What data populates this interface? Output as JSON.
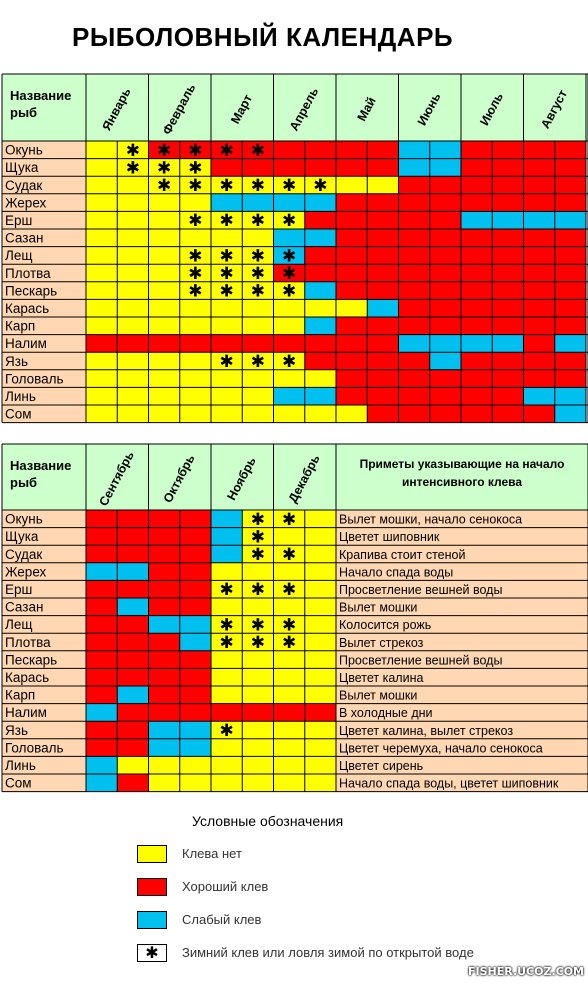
{
  "title": "РЫБОЛОВНЫЙ КАЛЕНДАРЬ",
  "colors": {
    "Y": "#ffff00",
    "R": "#ff0000",
    "B": "#00c0f0",
    "header": "#ccffcc",
    "name": "#ffd7b3"
  },
  "chart_data": [
    {
      "type": "table",
      "header_label": "Название рыб",
      "months": [
        "Январь",
        "Февраль",
        "Март",
        "Апрель",
        "Май",
        "Июнь",
        "Июль",
        "Август"
      ],
      "fish": [
        "Окунь",
        "Щука",
        "Судак",
        "Жерех",
        "Ерш",
        "Сазан",
        "Лещ",
        "Плотва",
        "Пескарь",
        "Карась",
        "Карп",
        "Налим",
        "Язь",
        "Головаль",
        "Линь",
        "Сом"
      ],
      "cells": [
        "YYRRRRRRRRBBRRRR",
        "YYYYRRRRRRBBRRRR",
        "YYYYYYYYYYRRRRRR",
        "YYYYBBBBRRRRRRRR",
        "YYYYYYYRRRRRBBBB",
        "YYYYYYBBRRRRRRRR",
        "YYYYYYBRRRRRRRRR",
        "YYYYYYRRRRRRRRRR",
        "YYYYYYYBRRRRRRRR",
        "YYYYYYYYYBRRRRRR",
        "YYYYYYYBRRRRRRRR",
        "RRRRRRRRRRBBBBRB",
        "YYYYYYYRRRRBRRRR",
        "YYYYYYYYRRRRRRRR",
        "YYYYYYBBRRRRRRBB",
        "YYYYYYYYYRRRRRRB"
      ],
      "stars": [
        [
          1,
          2,
          3,
          4,
          5
        ],
        [
          1,
          2,
          3
        ],
        [
          2,
          3,
          4,
          5,
          6,
          7
        ],
        [],
        [
          3,
          4,
          5,
          6
        ],
        [],
        [
          3,
          4,
          5,
          6
        ],
        [
          3,
          4,
          5,
          6
        ],
        [
          3,
          4,
          5,
          6
        ],
        [],
        [],
        [],
        [
          4,
          5,
          6
        ],
        [],
        [],
        []
      ]
    },
    {
      "type": "table",
      "header_label": "Название рыб",
      "months": [
        "Сентябрь",
        "Октябрь",
        "Ноябрь",
        "Декабрь"
      ],
      "signs_header": "Приметы указывающие на начало интенсивного клева",
      "fish": [
        "Окунь",
        "Щука",
        "Судак",
        "Жерех",
        "Ерш",
        "Сазан",
        "Лещ",
        "Плотва",
        "Пескарь",
        "Карась",
        "Карп",
        "Налим",
        "Язь",
        "Головаль",
        "Линь",
        "Сом"
      ],
      "cells": [
        "RRRRBYYY",
        "RRRRBYYY",
        "RRRRBYYY",
        "BBRRYYYY",
        "RRRRYYYY",
        "RBRRYYYY",
        "RRBBYYYY",
        "RRRBYYYY",
        "RRRRYYYY",
        "RRRRYYYY",
        "RBRRYYYY",
        "BRRRRRRR",
        "RRBBYYYY",
        "RRBBYYYY",
        "BYYYYYYY",
        "BRYYYYYY"
      ],
      "stars": [
        [
          5,
          6
        ],
        [
          5
        ],
        [
          5,
          6
        ],
        [],
        [
          4,
          5,
          6
        ],
        [],
        [
          4,
          5,
          6
        ],
        [
          4,
          5,
          6
        ],
        [],
        [],
        [],
        [],
        [
          4
        ],
        [],
        [],
        []
      ],
      "signs": [
        "Вылет мошки, начало сенокоса",
        "Цветет шиповник",
        "Крапива стоит стеной",
        "Начало спада воды",
        "Просветление вешней воды",
        "Вылет мошки",
        "Колосится рожь",
        "Вылет стрекоз",
        "Просветление вешней воды",
        "Цветет калина",
        "Вылет мошки",
        "В холодные дни",
        "Цветет калина, вылет стрекоз",
        "Цветет черемуха, начало сенокоса",
        "Цветет сирень",
        "Начало спада воды, цветет шиповник"
      ]
    }
  ],
  "legend": {
    "title": "Условные обозначения",
    "items": [
      {
        "kind": "Y",
        "label": "Клева нет"
      },
      {
        "kind": "R",
        "label": "Хороший клев"
      },
      {
        "kind": "B",
        "label": "Слабый клев"
      },
      {
        "kind": "star",
        "label": "Зимний клев или ловля зимой по открытой воде"
      }
    ]
  },
  "watermark": "FISHER.UCOZ.COM"
}
